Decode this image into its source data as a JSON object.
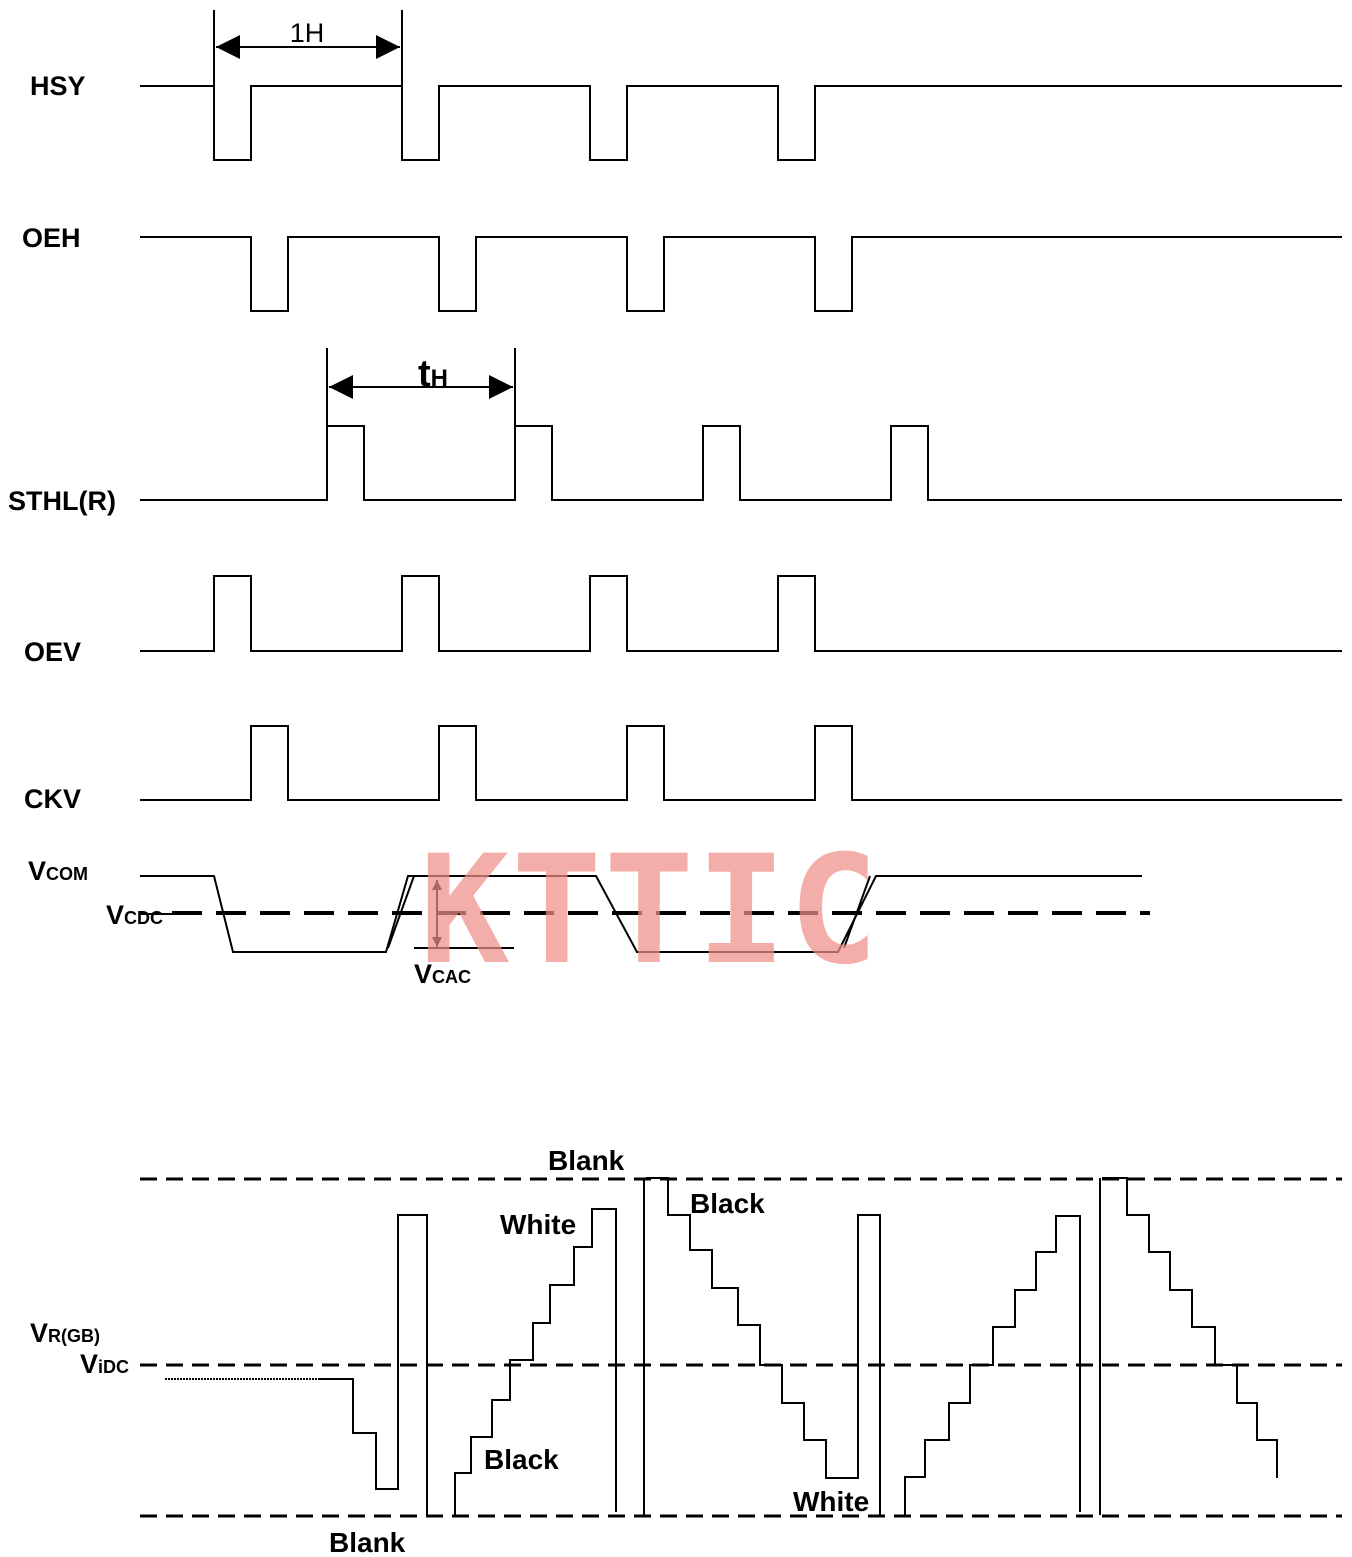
{
  "signals": {
    "hsy": "HSY",
    "oeh": "OEH",
    "sthl": "STHL(R)",
    "oev": "OEV",
    "ckv": "CKV"
  },
  "annotations": {
    "one_h": "1H",
    "t_main": "t",
    "t_sub": "H"
  },
  "vcom": {
    "vcom_main": "V",
    "vcom_sub": "COM",
    "vcdc_main": "V",
    "vcdc_sub": "CDC",
    "vcac_main": "V",
    "vcac_sub": "CAC"
  },
  "video": {
    "vr_main": "V",
    "vr_sub": "R(GB)",
    "vidc_main": "V",
    "vidc_sub": "iDC",
    "blank_top": "Blank",
    "blank_bottom": "Blank",
    "white_left": "White",
    "black_left": "Black",
    "black_right": "Black",
    "white_right": "White"
  },
  "watermark": "KTTIC",
  "colors": {
    "line": "#000000",
    "watermark": "#ef8f88",
    "background": "#ffffff"
  }
}
